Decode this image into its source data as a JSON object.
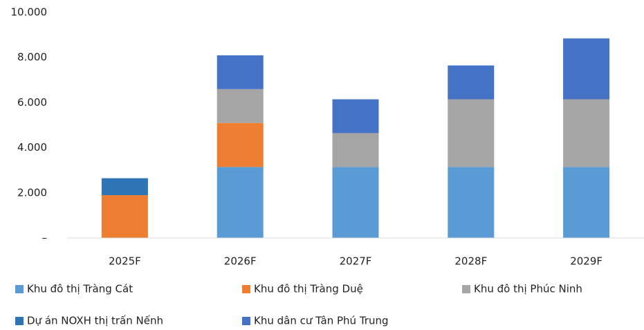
{
  "chart_data": {
    "type": "stacked_bar",
    "categories": [
      "2025F",
      "2026F",
      "2027F",
      "2028F",
      "2029F"
    ],
    "series": [
      {
        "name": "Khu đô thị Tràng Cát",
        "color": "#5b9bd5",
        "values": [
          null,
          3150,
          3150,
          3150,
          3150
        ]
      },
      {
        "name": "Khu đô thị Tràng Duệ",
        "color": "#ed7d31",
        "values": [
          1900,
          1950,
          null,
          null,
          null
        ]
      },
      {
        "name": "Khu đô thị Phúc Ninh",
        "color": "#a5a5a5",
        "values": [
          null,
          1500,
          1500,
          3000,
          3000
        ]
      },
      {
        "name": "Dự án NOXH thị trấn Nếnh",
        "color": "#2e75b6",
        "values": [
          750,
          null,
          null,
          null,
          null
        ]
      },
      {
        "name": "Khu dân cư Tân Phú Trung",
        "color": "#4472c4",
        "values": [
          null,
          1500,
          1500,
          1500,
          2700
        ]
      }
    ],
    "ylim": [
      0,
      10000
    ],
    "yticks": [
      {
        "value": 0,
        "label": "–"
      },
      {
        "value": 2000,
        "label": "2.000"
      },
      {
        "value": 4000,
        "label": "4.000"
      },
      {
        "value": 6000,
        "label": "6.000"
      },
      {
        "value": 8000,
        "label": "8.000"
      },
      {
        "value": 10000,
        "label": "10.000"
      }
    ],
    "grid": false,
    "legend": "bottom"
  }
}
